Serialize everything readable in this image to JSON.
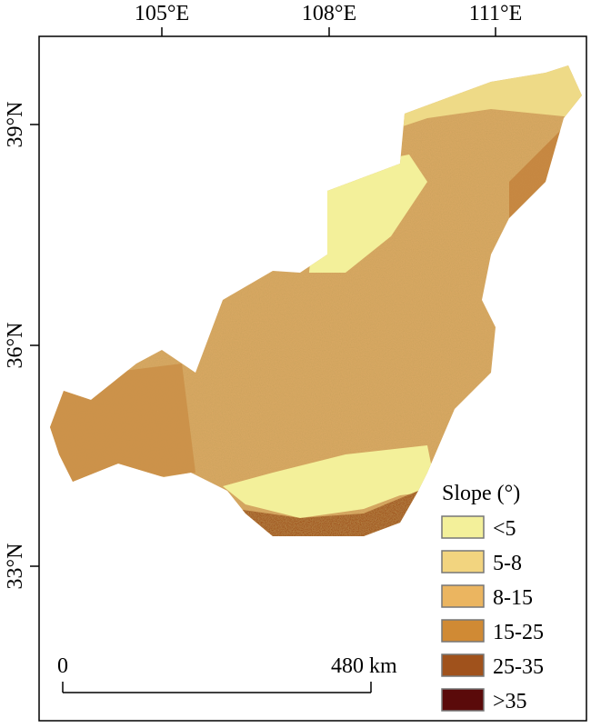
{
  "map": {
    "top_ticks": [
      "105°E",
      "108°E",
      "111°E"
    ],
    "left_ticks": [
      "39°N",
      "36°N",
      "33°N"
    ],
    "legend": {
      "title": "Slope (°)",
      "items": [
        {
          "label": "<5",
          "color": "#f3f09a"
        },
        {
          "label": "5-8",
          "color": "#f2d47f"
        },
        {
          "label": "8-15",
          "color": "#ebb560"
        },
        {
          "label": "15-25",
          "color": "#d08a34"
        },
        {
          "label": "25-35",
          "color": "#a0521c"
        },
        {
          "label": ">35",
          "color": "#5a0a0a"
        }
      ]
    },
    "scale_bar": {
      "start": "0",
      "end": "480 km"
    }
  }
}
